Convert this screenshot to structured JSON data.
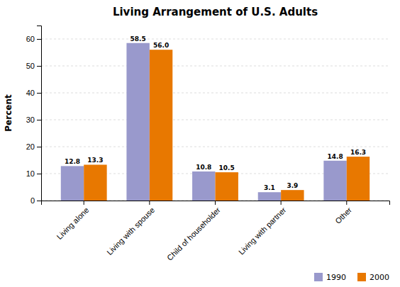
{
  "chart_data": {
    "type": "bar",
    "title": "Living Arrangement of U.S. Adults",
    "categories": [
      "Living alone",
      "Living with spouse",
      "Child of householder",
      "Living with partner",
      "Other"
    ],
    "series": [
      {
        "name": "1990",
        "color": "#9999cc",
        "values": [
          12.8,
          58.5,
          10.8,
          3.1,
          14.8
        ],
        "value_labels": [
          "12.8",
          "58.5",
          "10.8",
          "3.1",
          "14.8"
        ]
      },
      {
        "name": "2000",
        "color": "#e87800",
        "values": [
          13.3,
          56.0,
          10.5,
          3.9,
          16.3
        ],
        "value_labels": [
          "13.3",
          "56.0",
          "10.5",
          "3.9",
          "16.3"
        ]
      }
    ],
    "ylabel": "Percent",
    "ylim": [
      0,
      65
    ],
    "yticks": [
      0,
      10,
      20,
      30,
      40,
      50,
      60
    ],
    "grid": true,
    "data_labels": true,
    "legend": "bottom-right"
  }
}
